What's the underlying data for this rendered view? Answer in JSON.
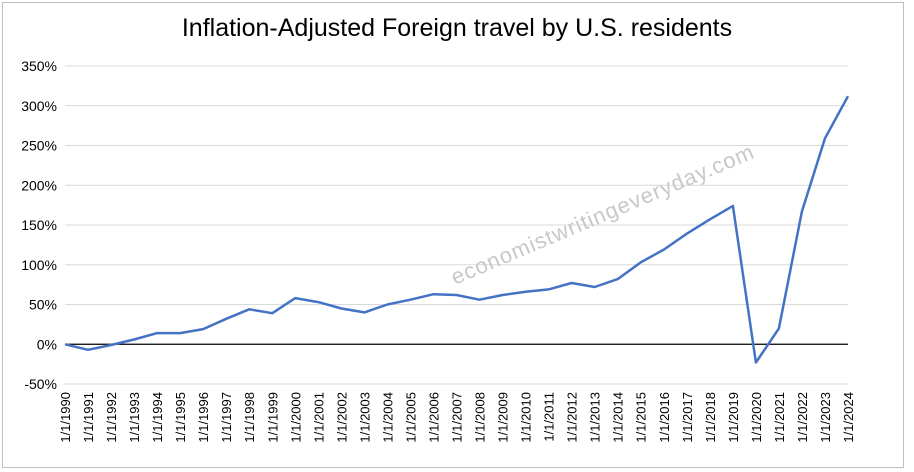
{
  "watermark": "economistwritingeveryday.com",
  "colors": {
    "line": "#4472c4",
    "grid": "#d9d9d9",
    "zero_line": "#000000",
    "text": "#000000"
  },
  "chart_data": {
    "type": "line",
    "title": "Inflation-Adjusted Foreign travel by U.S. residents",
    "xlabel": "",
    "ylabel": "",
    "ylim": [
      -50,
      350
    ],
    "yticks": [
      -50,
      0,
      50,
      100,
      150,
      200,
      250,
      300,
      350
    ],
    "ytick_labels": [
      "-50%",
      "0%",
      "50%",
      "100%",
      "150%",
      "200%",
      "250%",
      "300%",
      "350%"
    ],
    "grid": true,
    "legend": "none",
    "x": [
      "1/1/1990",
      "1/1/1991",
      "1/1/1992",
      "1/1/1993",
      "1/1/1994",
      "1/1/1995",
      "1/1/1996",
      "1/1/1997",
      "1/1/1998",
      "1/1/1999",
      "1/1/2000",
      "1/1/2001",
      "1/1/2002",
      "1/1/2003",
      "1/1/2004",
      "1/1/2005",
      "1/1/2006",
      "1/1/2007",
      "1/1/2008",
      "1/1/2009",
      "1/1/2010",
      "1/1/2011",
      "1/1/2012",
      "1/1/2013",
      "1/1/2014",
      "1/1/2015",
      "1/1/2016",
      "1/1/2017",
      "1/1/2018",
      "1/1/2019",
      "1/1/2020",
      "1/1/2021",
      "1/1/2022",
      "1/1/2023",
      "1/1/2024"
    ],
    "values": [
      0,
      -7,
      -1,
      6,
      14,
      14,
      19,
      32,
      44,
      39,
      58,
      53,
      45,
      40,
      50,
      56,
      63,
      62,
      56,
      62,
      66,
      69,
      77,
      72,
      82,
      103,
      119,
      139,
      157,
      174,
      -23,
      20,
      167,
      259,
      312
    ]
  }
}
